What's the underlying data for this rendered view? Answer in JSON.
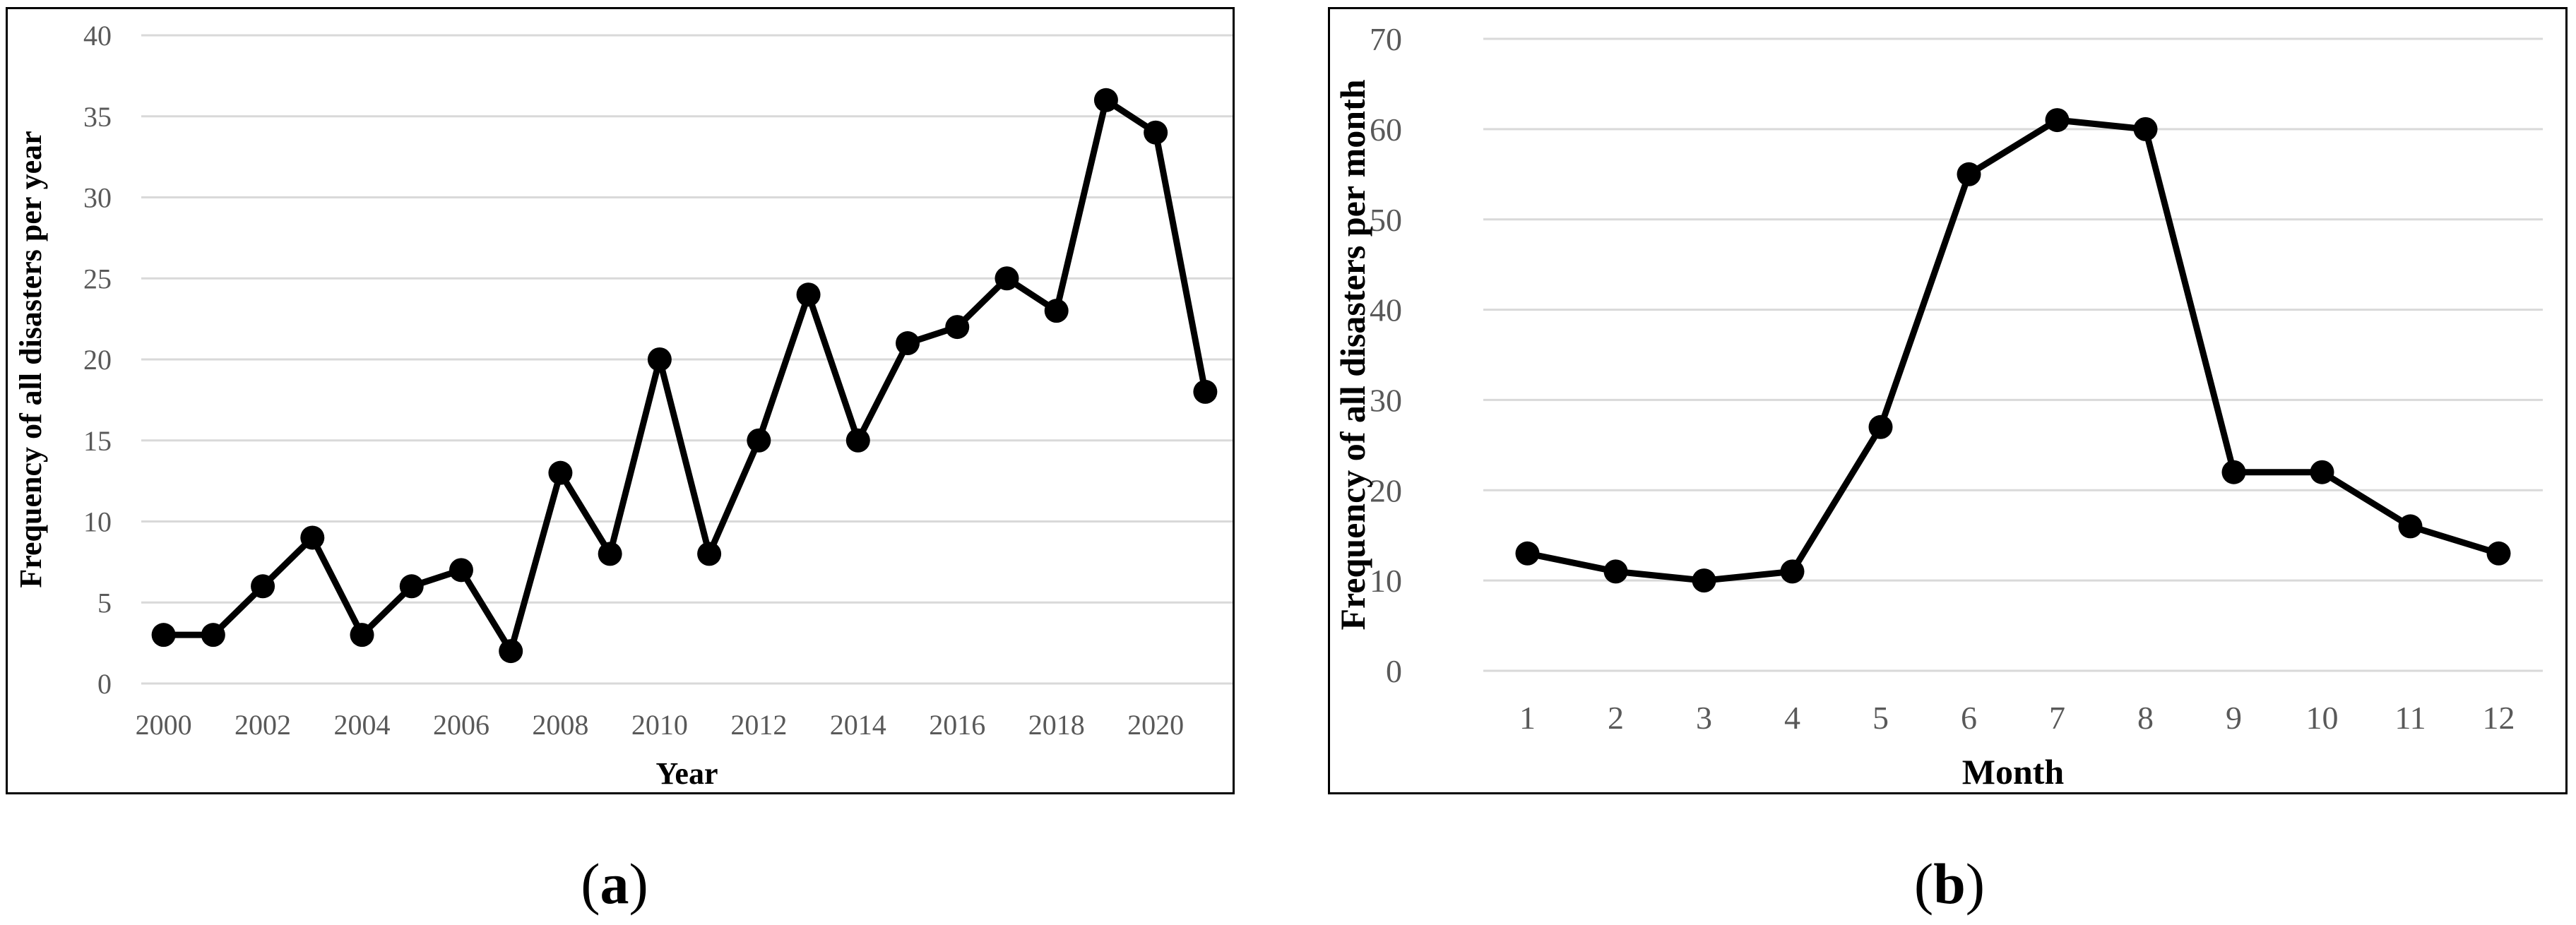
{
  "chart_data": [
    {
      "type": "line",
      "caption_letter": "a",
      "xlabel": "Year",
      "ylabel": "Frequency of all disasters per year",
      "ylim": [
        0,
        40
      ],
      "yticks": [
        0,
        5,
        10,
        15,
        20,
        25,
        30,
        35,
        40
      ],
      "xticks": [
        2000,
        2002,
        2004,
        2006,
        2008,
        2010,
        2012,
        2014,
        2016,
        2018,
        2020
      ],
      "x": [
        2000,
        2001,
        2002,
        2003,
        2004,
        2005,
        2006,
        2007,
        2008,
        2009,
        2010,
        2011,
        2012,
        2013,
        2014,
        2015,
        2016,
        2017,
        2018,
        2019,
        2020,
        2021
      ],
      "values": [
        3,
        3,
        6,
        9,
        3,
        6,
        7,
        2,
        13,
        8,
        20,
        8,
        15,
        24,
        15,
        21,
        22,
        25,
        23,
        36,
        34,
        18
      ],
      "grid": true,
      "line_color": "#000000",
      "grid_color": "#d9d9d9"
    },
    {
      "type": "line",
      "caption_letter": "b",
      "xlabel": "Month",
      "ylabel": "Frequency of all disasters per month",
      "ylim": [
        0,
        70
      ],
      "yticks": [
        0,
        10,
        20,
        30,
        40,
        50,
        60,
        70
      ],
      "xticks": [
        1,
        2,
        3,
        4,
        5,
        6,
        7,
        8,
        9,
        10,
        11,
        12
      ],
      "x": [
        1,
        2,
        3,
        4,
        5,
        6,
        7,
        8,
        9,
        10,
        11,
        12
      ],
      "values": [
        13,
        11,
        10,
        11,
        27,
        55,
        61,
        60,
        22,
        22,
        16,
        13
      ],
      "grid": true,
      "line_color": "#000000",
      "grid_color": "#d9d9d9"
    }
  ]
}
